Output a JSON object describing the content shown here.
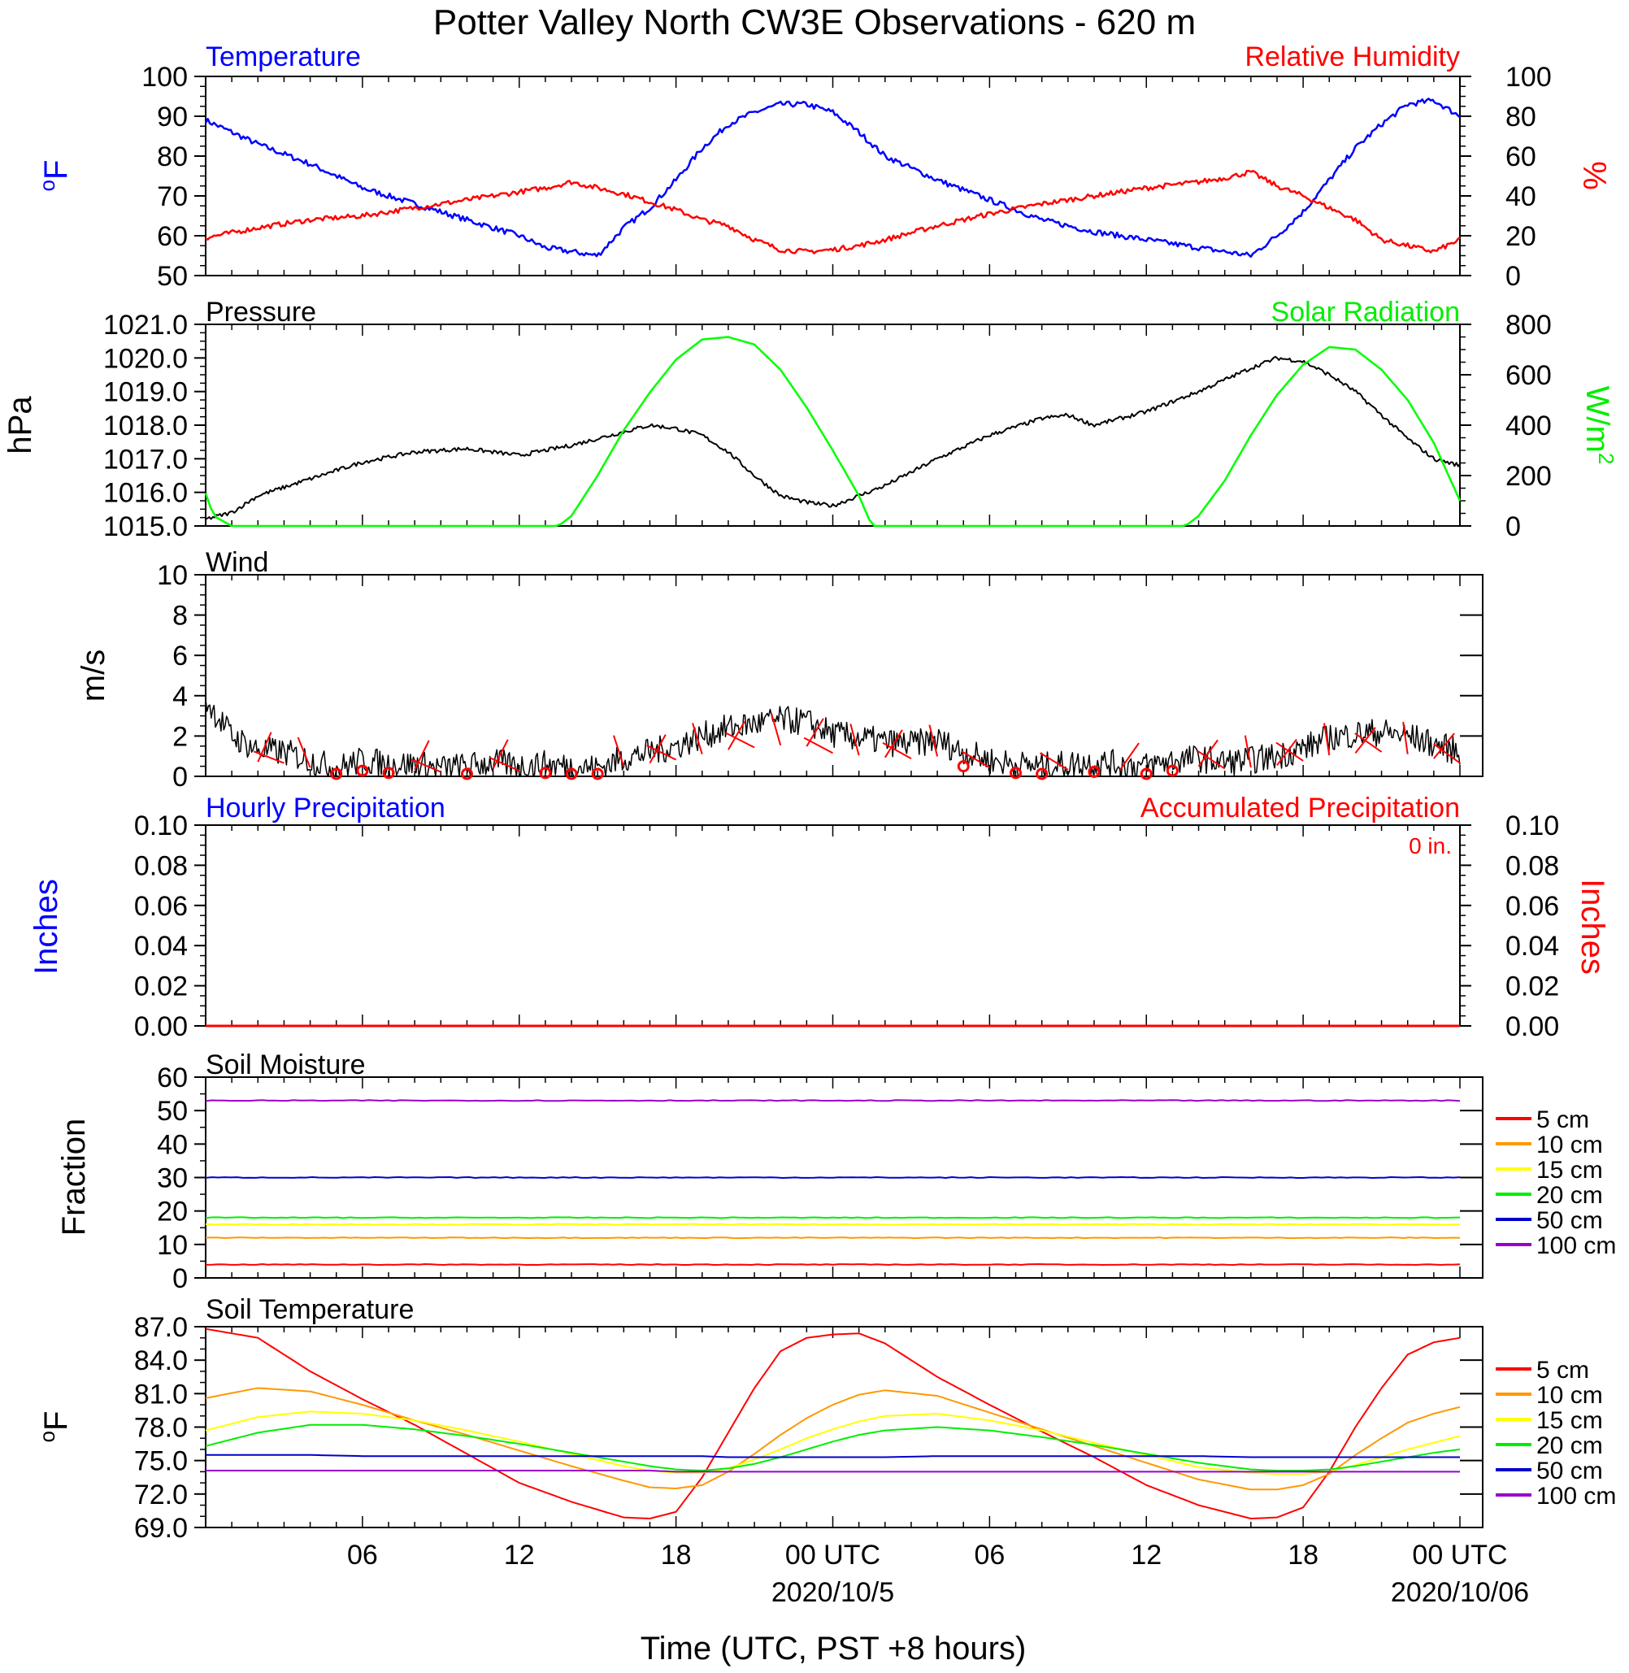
{
  "title": "Potter Valley North CW3E Observations - 620 m",
  "xlabel": "Time (UTC, PST +8 hours)",
  "time_axis": {
    "range_hours": [
      0,
      48
    ],
    "tick_labels": [
      "06",
      "12",
      "18",
      "00 UTC",
      "06",
      "12",
      "18",
      "00 UTC"
    ],
    "tick_hours": [
      6,
      12,
      18,
      24,
      30,
      36,
      42,
      48
    ],
    "date_labels": [
      "2020/10/5",
      "2020/10/06"
    ],
    "date_label_hours": [
      24,
      48
    ]
  },
  "panels": {
    "temp_rh": {
      "left_label": "Temperature",
      "right_label": "Relative Humidity",
      "left_unit": "oF",
      "right_unit": "%",
      "left_ticks": [
        "50",
        "60",
        "70",
        "80",
        "90",
        "100"
      ],
      "right_ticks": [
        "0",
        "20",
        "40",
        "60",
        "80",
        "100"
      ]
    },
    "pressure_solar": {
      "left_label": "Pressure",
      "right_label": "Solar Radiation",
      "left_unit": "hPa",
      "right_unit": "W/m2",
      "left_ticks": [
        "1015.0",
        "1016.0",
        "1017.0",
        "1018.0",
        "1019.0",
        "1020.0",
        "1021.0"
      ],
      "right_ticks": [
        "0",
        "200",
        "400",
        "600",
        "800"
      ]
    },
    "wind": {
      "label": "Wind",
      "unit": "m/s",
      "ticks": [
        "0",
        "2",
        "4",
        "6",
        "8",
        "10"
      ]
    },
    "precip": {
      "left_label": "Hourly Precipitation",
      "right_label": "Accumulated Precipitation",
      "accum_text": "0 in.",
      "left_unit": "Inches",
      "right_unit": "Inches",
      "ticks": [
        "0.00",
        "0.02",
        "0.04",
        "0.06",
        "0.08",
        "0.10"
      ]
    },
    "soil_moisture": {
      "label": "Soil Moisture",
      "unit": "Fraction",
      "ticks": [
        "0",
        "10",
        "20",
        "30",
        "40",
        "50",
        "60"
      ]
    },
    "soil_temp": {
      "label": "Soil Temperature",
      "unit": "oF",
      "ticks": [
        "69.0",
        "72.0",
        "75.0",
        "78.0",
        "81.0",
        "84.0",
        "87.0"
      ]
    }
  },
  "legend": [
    {
      "label": "5 cm",
      "color": "#ff0000"
    },
    {
      "label": "10 cm",
      "color": "#ff9900"
    },
    {
      "label": "15 cm",
      "color": "#ffff00"
    },
    {
      "label": "20 cm",
      "color": "#00ee00"
    },
    {
      "label": "50 cm",
      "color": "#0000cc"
    },
    {
      "label": "100 cm",
      "color": "#9900cc"
    }
  ],
  "colors": {
    "temperature": "#0000ff",
    "humidity": "#ff0000",
    "pressure": "#000000",
    "solar": "#00ff00",
    "wind": "#000000",
    "barb": "#ff0000"
  },
  "chart_data": [
    {
      "type": "line",
      "title": "Temperature",
      "ylabel": "oF",
      "ylim": [
        50,
        100
      ],
      "x": [
        0,
        2,
        4,
        6,
        8,
        10,
        12,
        13,
        14,
        15,
        16,
        17,
        18,
        19,
        20,
        21,
        22,
        23,
        24,
        25,
        26,
        28,
        30,
        32,
        34,
        36,
        38,
        39,
        40,
        41,
        42,
        43,
        44,
        45,
        46,
        47,
        48
      ],
      "series": [
        {
          "name": "Temperature",
          "values": [
            89,
            83,
            78,
            72,
            68,
            64,
            60,
            57,
            56,
            55,
            62,
            67,
            74,
            82,
            88,
            91,
            93,
            93,
            91,
            86,
            80,
            74,
            69,
            64,
            61,
            59,
            57,
            56,
            55,
            60,
            66,
            74,
            82,
            88,
            93,
            94,
            90
          ]
        }
      ]
    },
    {
      "type": "line",
      "title": "Relative Humidity",
      "ylabel": "%",
      "ylim": [
        0,
        100
      ],
      "x": [
        0,
        2,
        4,
        6,
        8,
        10,
        12,
        13,
        14,
        15,
        16,
        17,
        18,
        19,
        20,
        21,
        22,
        23,
        24,
        25,
        26,
        28,
        30,
        32,
        34,
        36,
        38,
        39,
        40,
        41,
        42,
        43,
        44,
        45,
        46,
        47,
        48
      ],
      "series": [
        {
          "name": "Relative Humidity",
          "values": [
            19,
            24,
            28,
            30,
            34,
            38,
            42,
            44,
            47,
            44,
            41,
            37,
            33,
            28,
            25,
            18,
            13,
            12,
            13,
            15,
            18,
            25,
            31,
            36,
            40,
            44,
            47,
            49,
            52,
            45,
            40,
            34,
            28,
            18,
            15,
            12,
            18
          ]
        }
      ]
    },
    {
      "type": "line",
      "title": "Pressure",
      "ylabel": "hPa",
      "ylim": [
        1015,
        1021
      ],
      "x": [
        0,
        1,
        2,
        4,
        6,
        8,
        10,
        12,
        14,
        16,
        17,
        18,
        19,
        20,
        21,
        22,
        23,
        24,
        25,
        26,
        28,
        30,
        32,
        33,
        34,
        36,
        38,
        40,
        41,
        42,
        43,
        44,
        45,
        46,
        47,
        48
      ],
      "series": [
        {
          "name": "Pressure",
          "values": [
            1015.2,
            1015.4,
            1015.9,
            1016.4,
            1016.9,
            1017.2,
            1017.3,
            1017.1,
            1017.4,
            1017.8,
            1018.0,
            1017.9,
            1017.7,
            1017.2,
            1016.5,
            1015.9,
            1015.7,
            1015.6,
            1015.9,
            1016.2,
            1017.0,
            1017.7,
            1018.2,
            1018.3,
            1018.0,
            1018.4,
            1019.0,
            1019.7,
            1020.0,
            1019.9,
            1019.5,
            1019.0,
            1018.3,
            1017.6,
            1017.0,
            1016.8
          ]
        }
      ]
    },
    {
      "type": "line",
      "title": "Solar Radiation",
      "ylabel": "W/m2",
      "ylim": [
        0,
        800
      ],
      "x": [
        0,
        0.3,
        1,
        13.5,
        14,
        15,
        16,
        17,
        18,
        19,
        20,
        21,
        22,
        23,
        24,
        25,
        25.5,
        37.5,
        38,
        39,
        40,
        41,
        42,
        43,
        44,
        45,
        46,
        47,
        48
      ],
      "series": [
        {
          "name": "Solar Radiation",
          "values": [
            130,
            40,
            0,
            0,
            40,
            200,
            380,
            530,
            660,
            740,
            750,
            720,
            620,
            470,
            300,
            120,
            0,
            0,
            40,
            180,
            360,
            520,
            640,
            710,
            700,
            620,
            500,
            330,
            100
          ]
        }
      ]
    },
    {
      "type": "line",
      "title": "Wind",
      "ylabel": "m/s",
      "ylim": [
        0,
        10
      ],
      "x": [
        0,
        1,
        2,
        3,
        4,
        5,
        6,
        7,
        8,
        9,
        10,
        11,
        12,
        13,
        14,
        15,
        16,
        17,
        18,
        19,
        20,
        21,
        22,
        23,
        24,
        25,
        26,
        27,
        28,
        29,
        30,
        31,
        32,
        33,
        34,
        35,
        36,
        37,
        38,
        39,
        40,
        41,
        42,
        43,
        44,
        45,
        46,
        47,
        48
      ],
      "series": [
        {
          "name": "Wind",
          "values": [
            3.8,
            2.0,
            1.3,
            1.2,
            0.8,
            0.4,
            0.8,
            0.6,
            0.6,
            0.4,
            0.5,
            0.7,
            0.5,
            0.6,
            0.5,
            0.4,
            0.9,
            1.2,
            1.5,
            2.0,
            2.4,
            2.6,
            2.8,
            2.7,
            2.1,
            1.9,
            1.7,
            1.6,
            1.8,
            1.2,
            0.8,
            0.6,
            0.5,
            0.6,
            0.7,
            0.6,
            0.5,
            0.8,
            0.9,
            0.7,
            0.8,
            1.0,
            1.4,
            1.9,
            2.1,
            2.2,
            2.0,
            1.6,
            1.2
          ]
        }
      ]
    },
    {
      "type": "line",
      "title": "Hourly Precipitation",
      "ylabel": "Inches",
      "ylim": [
        0,
        0.1
      ],
      "x": [
        0,
        48
      ],
      "series": [
        {
          "name": "Hourly Precipitation",
          "values": [
            0,
            0
          ]
        },
        {
          "name": "Accumulated Precipitation",
          "values": [
            0,
            0
          ]
        }
      ]
    },
    {
      "type": "line",
      "title": "Soil Moisture",
      "ylabel": "Fraction",
      "ylim": [
        0,
        60
      ],
      "x": [
        0,
        48
      ],
      "series": [
        {
          "name": "5 cm",
          "values": [
            4,
            4
          ]
        },
        {
          "name": "10 cm",
          "values": [
            12,
            12
          ]
        },
        {
          "name": "15 cm",
          "values": [
            16,
            16
          ]
        },
        {
          "name": "20 cm",
          "values": [
            18,
            18
          ]
        },
        {
          "name": "50 cm",
          "values": [
            30,
            30
          ]
        },
        {
          "name": "100 cm",
          "values": [
            53,
            53
          ]
        }
      ]
    },
    {
      "type": "line",
      "title": "Soil Temperature",
      "ylabel": "oF",
      "ylim": [
        69,
        87
      ],
      "x": [
        0,
        2,
        4,
        6,
        8,
        10,
        12,
        14,
        16,
        17,
        18,
        19,
        20,
        21,
        22,
        23,
        24,
        25,
        26,
        28,
        30,
        32,
        34,
        36,
        38,
        40,
        41,
        42,
        43,
        44,
        45,
        46,
        47,
        48
      ],
      "series": [
        {
          "name": "5 cm",
          "values": [
            86.8,
            86.0,
            83.0,
            80.5,
            78.2,
            75.6,
            73.0,
            71.3,
            69.9,
            69.8,
            70.4,
            73.5,
            77.5,
            81.5,
            84.8,
            86.0,
            86.3,
            86.4,
            85.5,
            82.5,
            80.0,
            77.6,
            75.3,
            72.8,
            71.0,
            69.8,
            69.9,
            70.8,
            74.0,
            78.0,
            81.5,
            84.5,
            85.6,
            86.0
          ]
        },
        {
          "name": "10 cm",
          "values": [
            80.6,
            81.5,
            81.2,
            80.0,
            78.6,
            77.3,
            75.9,
            74.5,
            73.2,
            72.6,
            72.5,
            72.8,
            74.0,
            75.6,
            77.3,
            78.8,
            80.0,
            80.9,
            81.3,
            80.8,
            79.3,
            77.8,
            76.3,
            74.8,
            73.3,
            72.4,
            72.4,
            72.8,
            73.8,
            75.5,
            77.0,
            78.4,
            79.2,
            79.8
          ]
        },
        {
          "name": "15 cm",
          "values": [
            77.7,
            78.9,
            79.4,
            79.2,
            78.6,
            77.7,
            76.7,
            75.6,
            74.5,
            74.1,
            73.9,
            73.9,
            74.3,
            75.1,
            76.0,
            77.0,
            77.8,
            78.5,
            79.0,
            79.2,
            78.6,
            77.7,
            76.6,
            75.5,
            74.4,
            73.9,
            73.8,
            73.8,
            74.0,
            74.6,
            75.3,
            76.0,
            76.6,
            77.2
          ]
        },
        {
          "name": "20 cm",
          "values": [
            76.3,
            77.5,
            78.2,
            78.2,
            77.8,
            77.2,
            76.5,
            75.7,
            74.9,
            74.5,
            74.2,
            74.1,
            74.3,
            74.7,
            75.3,
            76.0,
            76.7,
            77.3,
            77.7,
            78.0,
            77.7,
            77.1,
            76.4,
            75.6,
            74.8,
            74.2,
            74.1,
            74.1,
            74.2,
            74.5,
            74.9,
            75.3,
            75.7,
            76.0
          ]
        },
        {
          "name": "50 cm",
          "values": [
            75.5,
            75.5,
            75.5,
            75.4,
            75.4,
            75.4,
            75.4,
            75.4,
            75.4,
            75.4,
            75.4,
            75.4,
            75.3,
            75.3,
            75.3,
            75.3,
            75.3,
            75.3,
            75.3,
            75.4,
            75.4,
            75.4,
            75.4,
            75.4,
            75.4,
            75.3,
            75.3,
            75.3,
            75.3,
            75.3,
            75.3,
            75.3,
            75.3,
            75.3
          ]
        },
        {
          "name": "100 cm",
          "values": [
            74.1,
            74.1,
            74.1,
            74.1,
            74.1,
            74.1,
            74.1,
            74.1,
            74.1,
            74.1,
            74.0,
            74.0,
            74.0,
            74.0,
            74.0,
            74.0,
            74.0,
            74.0,
            74.0,
            74.0,
            74.0,
            74.0,
            74.0,
            74.0,
            74.0,
            74.0,
            74.0,
            74.0,
            74.0,
            74.0,
            74.0,
            74.0,
            74.0,
            74.0
          ]
        }
      ]
    }
  ]
}
